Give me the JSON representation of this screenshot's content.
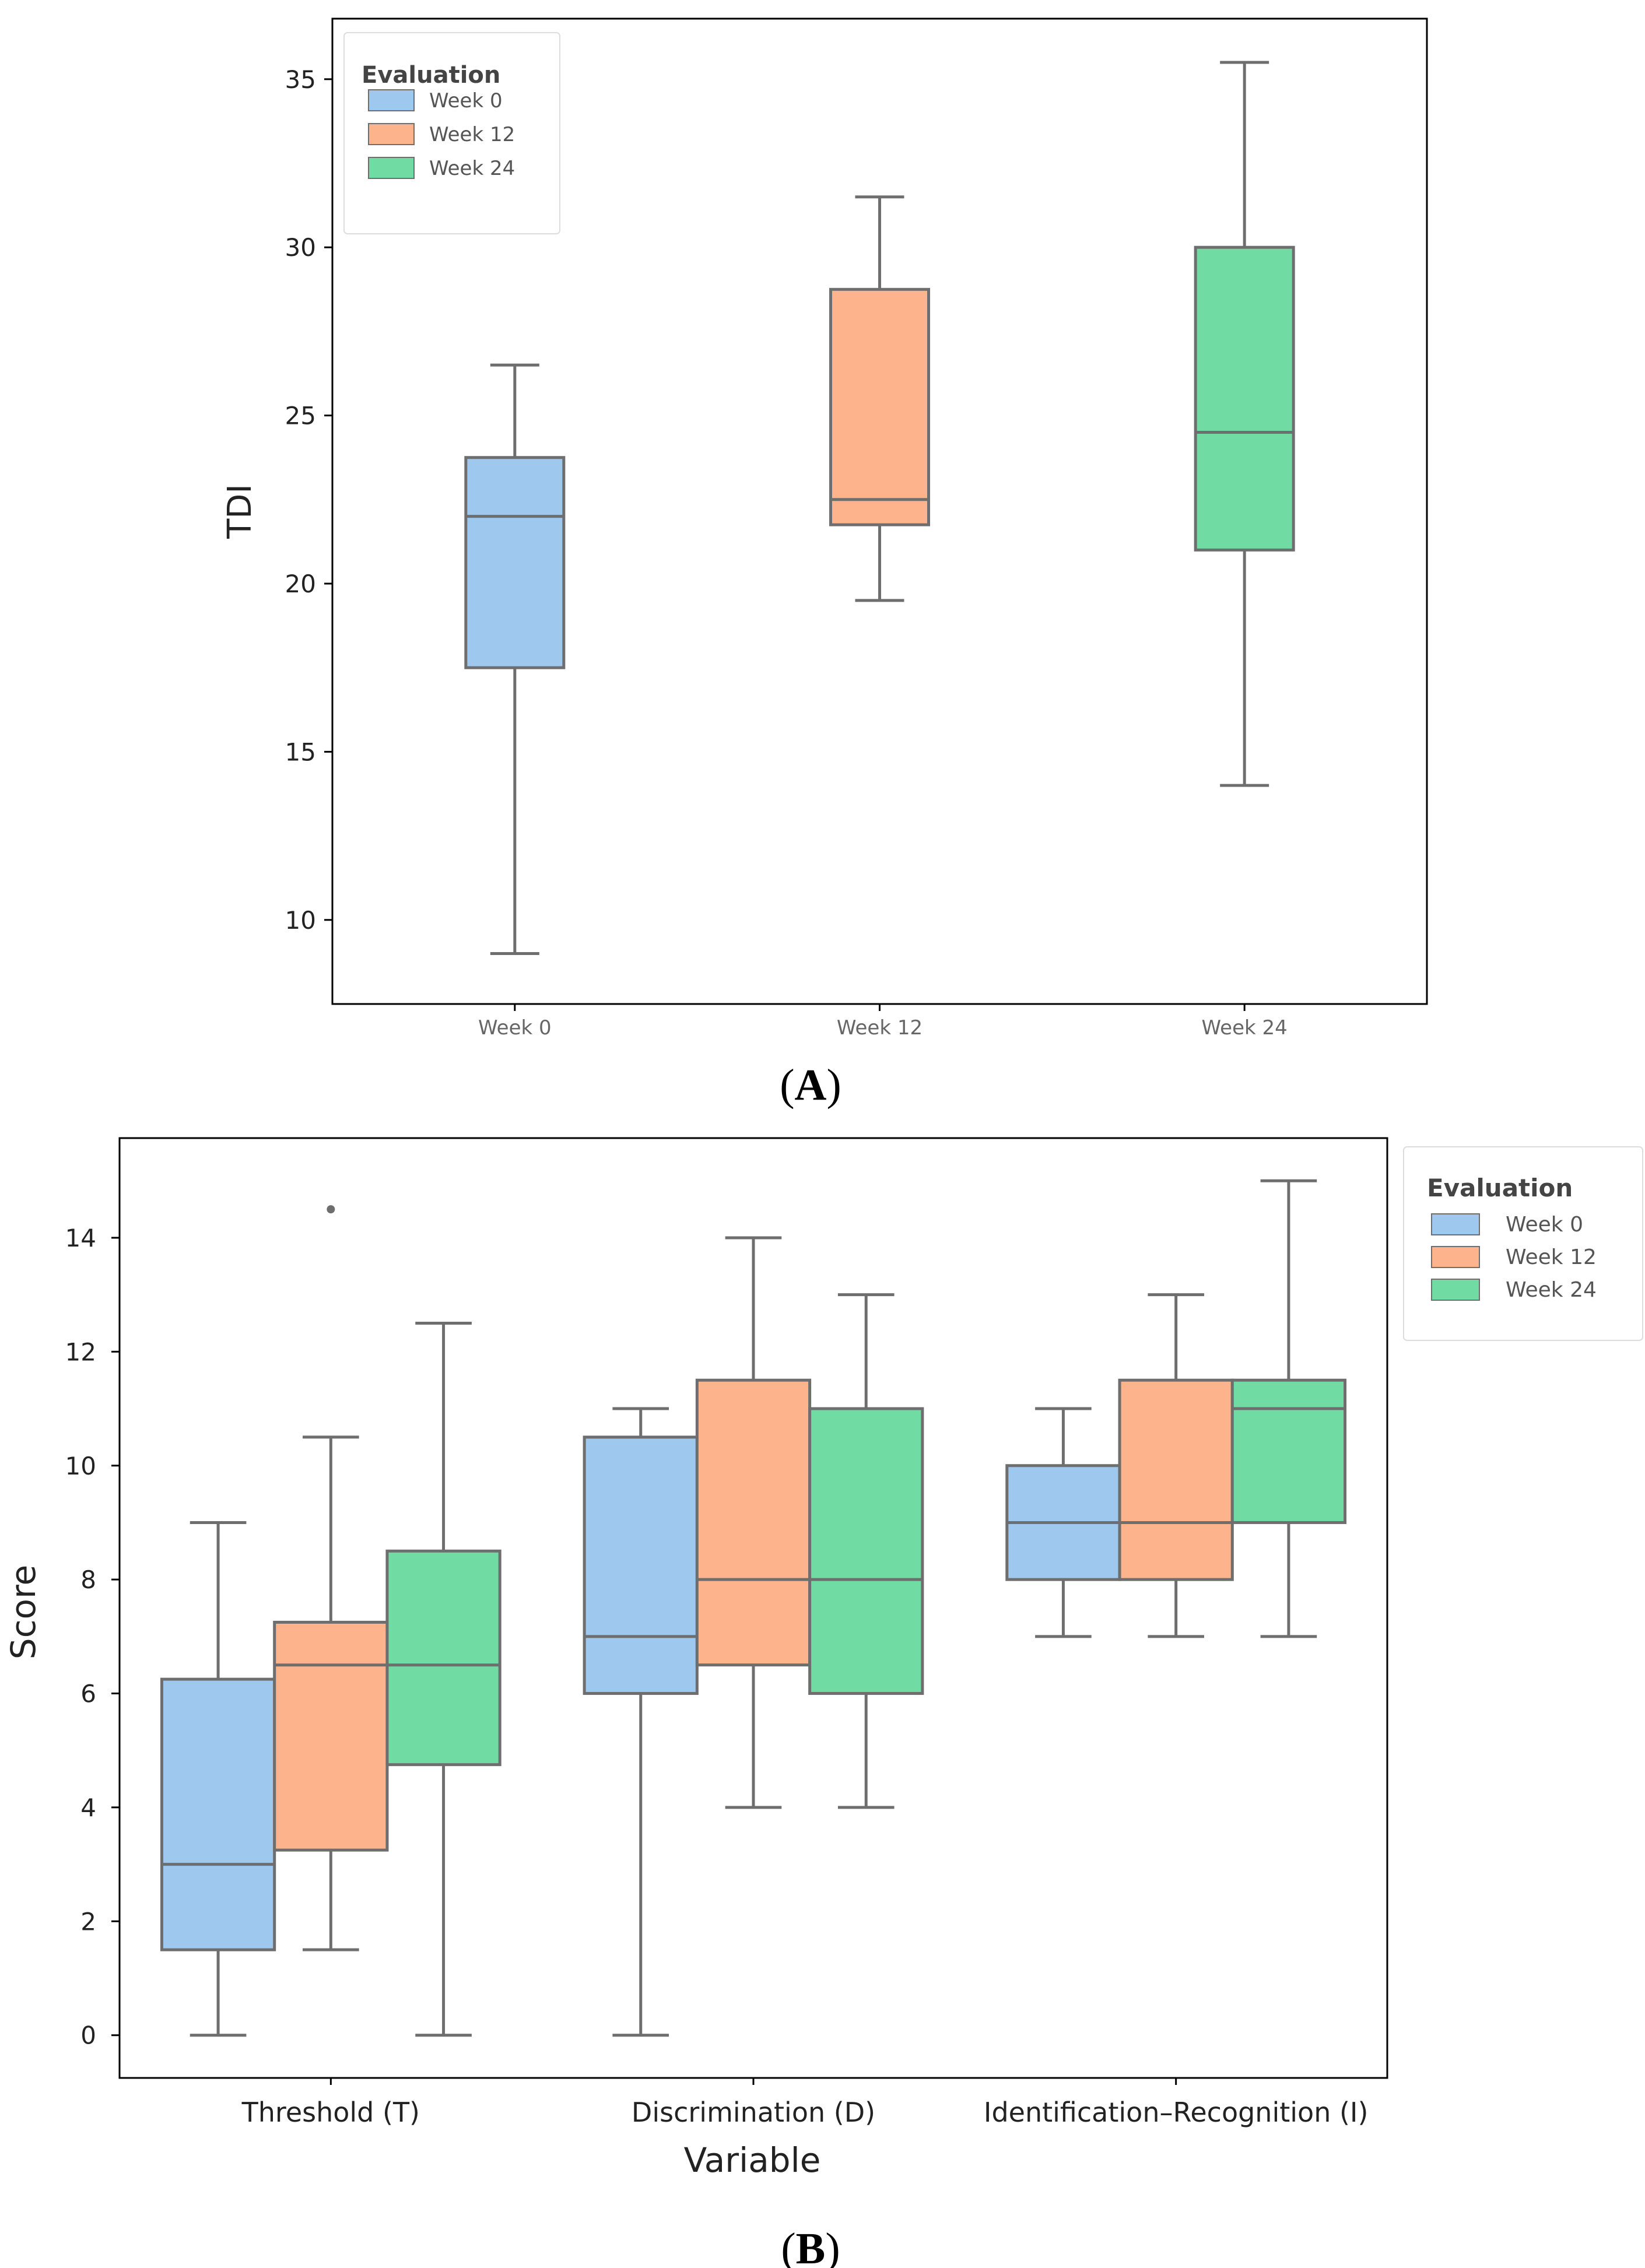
{
  "palette": {
    "Week 0": "#9fc8ee",
    "Week 12": "#fdb48d",
    "Week 24": "#70dca4",
    "stroke": "#6e6e6e",
    "axis": "#000000"
  },
  "chart_data": [
    {
      "id": "A",
      "panel_label": "A",
      "type": "box",
      "title": "",
      "xlabel": "",
      "ylabel": "TDI",
      "ylim": [
        7.5,
        36.8
      ],
      "yticks": [
        10,
        15,
        20,
        25,
        30,
        35
      ],
      "categories": [
        "Week 0",
        "Week 12",
        "Week 24"
      ],
      "legend": {
        "title": "Evaluation",
        "position": "top-left",
        "entries": [
          "Week 0",
          "Week 12",
          "Week 24"
        ]
      },
      "series": [
        {
          "name": "Week 0",
          "category": "Week 0",
          "whislo": 9.0,
          "q1": 17.5,
          "med": 22.0,
          "q3": 23.75,
          "whishi": 26.5,
          "fliers": []
        },
        {
          "name": "Week 12",
          "category": "Week 12",
          "whislo": 19.5,
          "q1": 21.75,
          "med": 22.5,
          "q3": 28.75,
          "whishi": 31.5,
          "fliers": []
        },
        {
          "name": "Week 24",
          "category": "Week 24",
          "whislo": 14.0,
          "q1": 21.0,
          "med": 24.5,
          "q3": 30.0,
          "whishi": 35.5,
          "fliers": []
        }
      ]
    },
    {
      "id": "B",
      "panel_label": "B",
      "type": "box",
      "title": "",
      "xlabel": "Variable",
      "ylabel": "Score",
      "ylim": [
        -0.75,
        15.75
      ],
      "yticks": [
        0,
        2,
        4,
        6,
        8,
        10,
        12,
        14
      ],
      "categories": [
        "Threshold (T)",
        "Discrimination (D)",
        "Identification–Recognition (I)"
      ],
      "legend": {
        "title": "Evaluation",
        "position": "outside-right",
        "entries": [
          "Week 0",
          "Week 12",
          "Week 24"
        ]
      },
      "series": [
        {
          "name": "Week 0",
          "values": [
            {
              "whislo": 0,
              "q1": 1.5,
              "med": 3.0,
              "q3": 6.25,
              "whishi": 9.0,
              "fliers": []
            },
            {
              "whislo": 0,
              "q1": 6.0,
              "med": 7.0,
              "q3": 10.5,
              "whishi": 11.0,
              "fliers": []
            },
            {
              "whislo": 7,
              "q1": 8.0,
              "med": 9.0,
              "q3": 10.0,
              "whishi": 11.0,
              "fliers": []
            }
          ]
        },
        {
          "name": "Week 12",
          "values": [
            {
              "whislo": 1.5,
              "q1": 3.25,
              "med": 6.5,
              "q3": 7.25,
              "whishi": 10.5,
              "fliers": [
                14.5
              ]
            },
            {
              "whislo": 4.0,
              "q1": 6.5,
              "med": 8.0,
              "q3": 11.5,
              "whishi": 14.0,
              "fliers": []
            },
            {
              "whislo": 7.0,
              "q1": 8.0,
              "med": 9.0,
              "q3": 11.5,
              "whishi": 13.0,
              "fliers": []
            }
          ]
        },
        {
          "name": "Week 24",
          "values": [
            {
              "whislo": 0.0,
              "q1": 4.75,
              "med": 6.5,
              "q3": 8.5,
              "whishi": 12.5,
              "fliers": []
            },
            {
              "whislo": 4.0,
              "q1": 6.0,
              "med": 8.0,
              "q3": 11.0,
              "whishi": 13.0,
              "fliers": []
            },
            {
              "whislo": 7.0,
              "q1": 9.0,
              "med": 11.0,
              "q3": 11.5,
              "whishi": 15.0,
              "fliers": []
            }
          ]
        }
      ]
    }
  ]
}
